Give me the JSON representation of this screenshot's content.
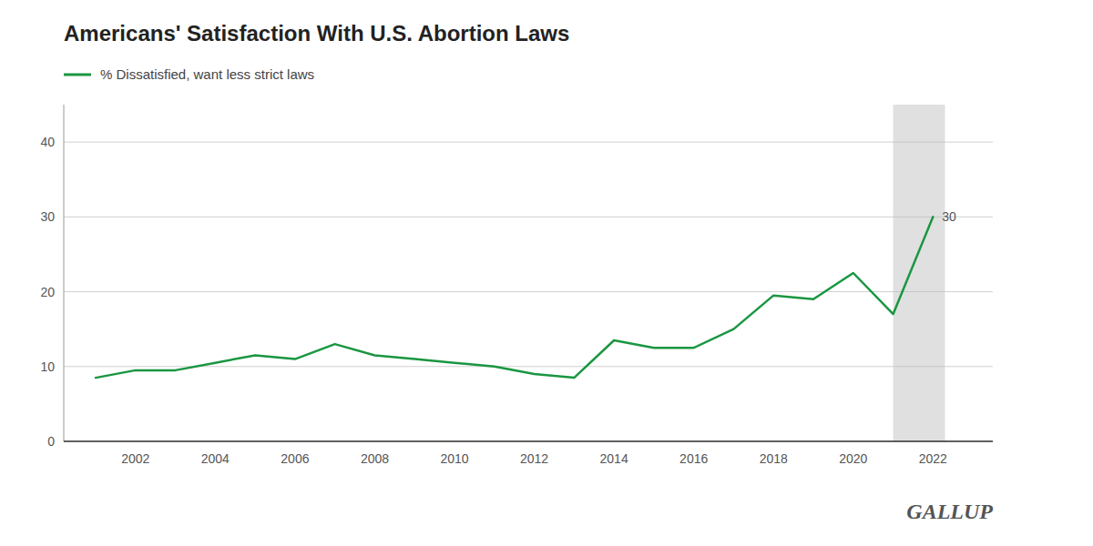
{
  "chart_data": {
    "type": "line",
    "title": "Americans' Satisfaction With U.S. Abortion Laws",
    "x": [
      2001,
      2002,
      2003,
      2004,
      2005,
      2006,
      2007,
      2008,
      2009,
      2010,
      2011,
      2012,
      2013,
      2014,
      2015,
      2016,
      2017,
      2018,
      2019,
      2020,
      2021,
      2022
    ],
    "series": [
      {
        "name": "% Dissatisfied, want less strict laws",
        "color": "#1a9641",
        "values": [
          8.5,
          9.5,
          9.5,
          10.5,
          11.5,
          11.0,
          13.0,
          11.5,
          11.0,
          10.5,
          10.0,
          9.0,
          8.5,
          13.5,
          12.5,
          12.5,
          15.0,
          19.5,
          19.0,
          22.5,
          17.0,
          30.0
        ]
      }
    ],
    "xlim": [
      2000.2,
      2023.5
    ],
    "xticks": [
      2002,
      2004,
      2006,
      2008,
      2010,
      2012,
      2014,
      2016,
      2018,
      2020,
      2022
    ],
    "ylim": [
      0,
      45
    ],
    "yticks": [
      0,
      10,
      20,
      30,
      40
    ],
    "grid": true,
    "shaded_region": [
      2021.0,
      2022.3
    ],
    "annotations": [
      {
        "text": "30",
        "x": 2022,
        "y": 30
      }
    ],
    "watermark": "GALLUP"
  }
}
